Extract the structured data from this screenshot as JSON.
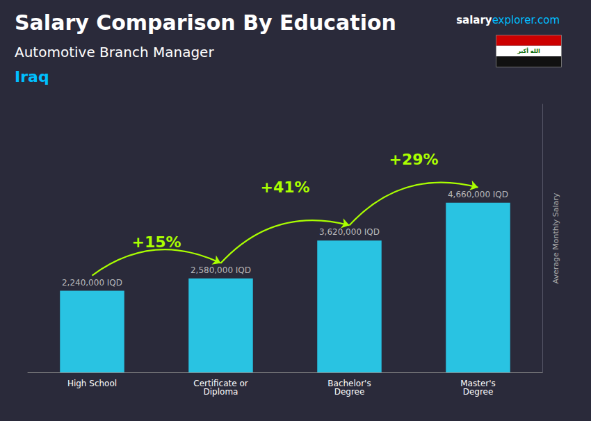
{
  "chart_data": {
    "type": "bar",
    "title": "Salary Comparison By Education",
    "subtitle": "Automotive Branch Manager",
    "country": "Iraq",
    "brand": [
      "salary",
      "explorer.com"
    ],
    "flag_text": "الله أكبر",
    "ylabel": "Average Monthly Salary",
    "categories": [
      "High School",
      "Certificate or\nDiploma",
      "Bachelor's\nDegree",
      "Master's\nDegree"
    ],
    "values": [
      2240000,
      2580000,
      3620000,
      4660000
    ],
    "value_labels": [
      "2,240,000 IQD",
      "2,580,000 IQD",
      "3,620,000 IQD",
      "4,660,000 IQD"
    ],
    "data_labels": true,
    "annotations": [
      "+15%",
      "+41%",
      "+29%"
    ],
    "color": "#29d4f5",
    "ylim": [
      0,
      7362800
    ],
    "grid": false,
    "tick_labels": "x"
  }
}
